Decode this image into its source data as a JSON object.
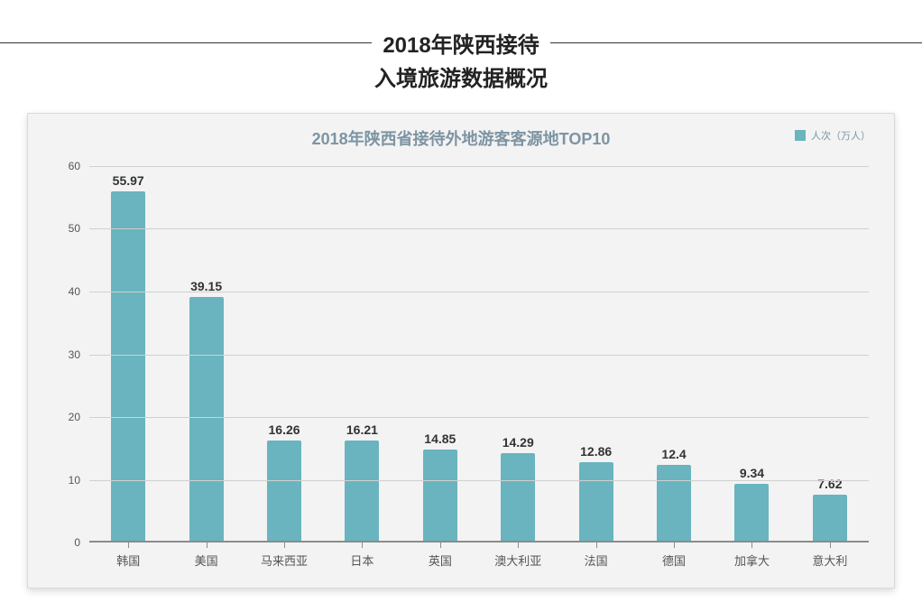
{
  "header": {
    "line1": "2018年陕西接待",
    "line2": "入境旅游数据概况",
    "font_size_pt": 24,
    "font_weight": 700,
    "text_color": "#222222",
    "rule_color": "#333333"
  },
  "chart": {
    "type": "bar",
    "title": "2018年陕西省接待外地游客客源地TOP10",
    "title_color": "#7d94a3",
    "title_fontsize": 18,
    "card_bg_color": "#f3f3f3",
    "card_border_color": "#d9d9d9",
    "legend": {
      "label": "人次（万人）",
      "swatch_color": "#69b4bf",
      "text_color": "#7d94a3"
    },
    "y_axis": {
      "min": 0,
      "max": 60,
      "tick_step": 10,
      "ticks": [
        0,
        10,
        20,
        30,
        40,
        50,
        60
      ],
      "tick_fontsize": 12,
      "tick_color": "#555555",
      "grid_color": "#d0d0d0",
      "baseline_color": "#8c8c8c"
    },
    "x_axis": {
      "tick_color": "#8c8c8c",
      "label_fontsize": 13,
      "label_color": "#555555"
    },
    "bars": {
      "color": "#69b4bf",
      "width_fraction": 0.44,
      "value_label_color": "#333333",
      "value_label_fontsize": 14
    },
    "categories": [
      "韩国",
      "美国",
      "马来西亚",
      "日本",
      "英国",
      "澳大利亚",
      "法国",
      "德国",
      "加拿大",
      "意大利"
    ],
    "values": [
      55.97,
      39.15,
      16.26,
      16.21,
      14.85,
      14.29,
      12.86,
      12.4,
      9.34,
      7.62
    ]
  }
}
